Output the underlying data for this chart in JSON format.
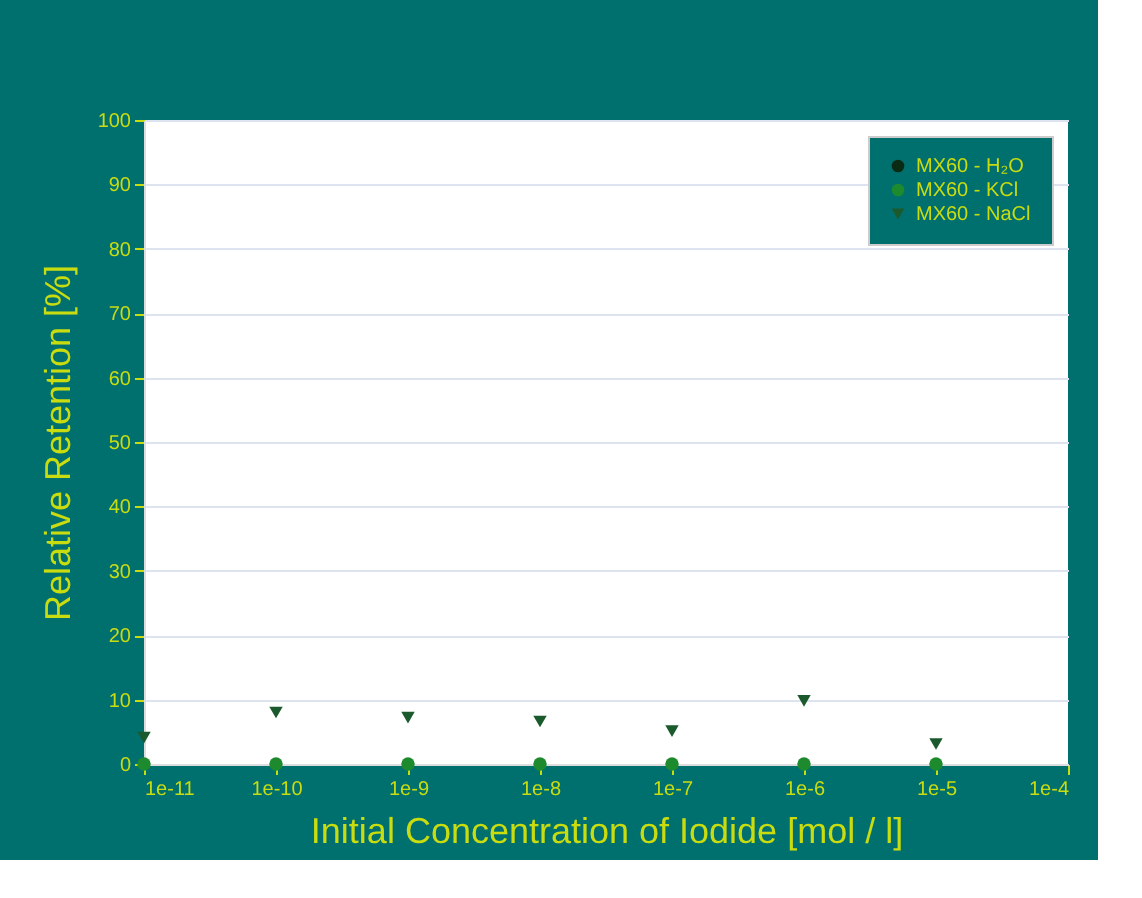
{
  "chart_data": {
    "type": "scatter",
    "xlabel": "Initial Concentration of Iodide [mol / l]",
    "ylabel": "Relative Retention [%]",
    "x": [
      1e-11,
      1e-10,
      1e-09,
      1e-08,
      1e-07,
      1e-06,
      1e-05
    ],
    "series": [
      {
        "name": "MX60 - H₂O",
        "color": "#0b2a14",
        "marker": "circle",
        "values": [
          null,
          null,
          null,
          null,
          null,
          null,
          null
        ]
      },
      {
        "name": "MX60 - KCl",
        "color": "#1e8a2e",
        "marker": "circle",
        "values": [
          0,
          0,
          0,
          0,
          0,
          0,
          0
        ]
      },
      {
        "name": "MX60 - NaCl",
        "color": "#1b5a2c",
        "marker": "triangle",
        "values": [
          4.1,
          8,
          7.2,
          6.6,
          5.1,
          9.8,
          3.1
        ]
      }
    ],
    "xlim": [
      1e-11,
      0.0001
    ],
    "xticks": [
      {
        "value": 1e-11,
        "label": "1e-11"
      },
      {
        "value": 1e-10,
        "label": "1e-10"
      },
      {
        "value": 1e-09,
        "label": "1e-9"
      },
      {
        "value": 1e-08,
        "label": "1e-8"
      },
      {
        "value": 1e-07,
        "label": "1e-7"
      },
      {
        "value": 1e-06,
        "label": "1e-6"
      },
      {
        "value": 1e-05,
        "label": "1e-5"
      },
      {
        "value": 0.0001,
        "label": "1e-4"
      }
    ],
    "log": "x",
    "ylim": [
      0,
      100
    ],
    "yticks": [
      0,
      10,
      20,
      30,
      40,
      50,
      60,
      70,
      80,
      90,
      100
    ],
    "grid": "y",
    "legend": "top right"
  }
}
